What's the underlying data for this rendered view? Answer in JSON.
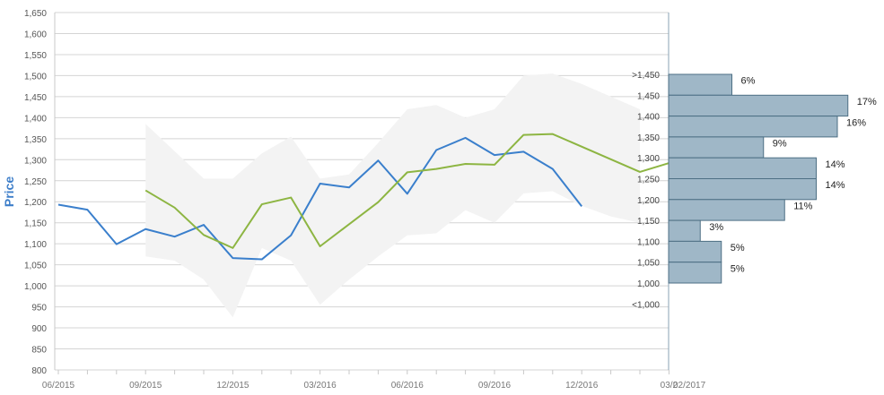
{
  "chart_data": {
    "type": "line",
    "ylabel": "Price",
    "ylim": [
      800,
      1650
    ],
    "y_ticks": [
      "800",
      "850",
      "900",
      "950",
      "1,000",
      "1,050",
      "1,100",
      "1,150",
      "1,200",
      "1,250",
      "1,300",
      "1,350",
      "1,400",
      "1,450",
      "1,500",
      "1,550",
      "1,600",
      "1,650"
    ],
    "x_tick_labels": [
      {
        "label": "06/2015",
        "month_index": 0
      },
      {
        "label": "09/2015",
        "month_index": 3
      },
      {
        "label": "12/2015",
        "month_index": 6
      },
      {
        "label": "03/2016",
        "month_index": 9
      },
      {
        "label": "06/2016",
        "month_index": 12
      },
      {
        "label": "09/2016",
        "month_index": 15
      },
      {
        "label": "12/2016",
        "month_index": 18
      },
      {
        "label": "03/2",
        "month_index": 21
      },
      {
        "label": "02/2017",
        "month_index": 21.7
      }
    ],
    "series": [
      {
        "color": "#3a7fcc",
        "x": [
          0,
          1,
          2,
          3,
          4,
          5,
          6,
          7,
          8,
          9,
          10,
          11,
          12,
          13,
          14,
          15,
          16,
          17,
          18
        ],
        "values": [
          1193,
          1181,
          1099,
          1135,
          1117,
          1145,
          1066,
          1063,
          1120,
          1243,
          1234,
          1298,
          1219,
          1323,
          1352,
          1311,
          1319,
          1278,
          1189
        ]
      },
      {
        "color": "#8db542",
        "x": [
          3,
          4,
          5,
          6,
          7,
          8,
          9,
          11,
          12,
          13,
          14,
          15,
          16,
          17,
          20,
          21
        ],
        "values": [
          1227,
          1186,
          1121,
          1090,
          1194,
          1210,
          1094,
          1199,
          1270,
          1278,
          1290,
          1288,
          1359,
          1361,
          1271,
          1292
        ]
      }
    ],
    "range_band": {
      "color": "#f3f3f3",
      "x": [
        3,
        4,
        5,
        6,
        7,
        8,
        9,
        10,
        11,
        12,
        13,
        14,
        15,
        16,
        17,
        18,
        19,
        20
      ],
      "upper": [
        1385,
        1320,
        1255,
        1255,
        1315,
        1355,
        1255,
        1265,
        1340,
        1420,
        1430,
        1400,
        1420,
        1500,
        1505,
        1480,
        1450,
        1420
      ],
      "lower": [
        1070,
        1060,
        1015,
        925,
        1090,
        1060,
        955,
        1015,
        1070,
        1120,
        1125,
        1180,
        1150,
        1220,
        1225,
        1190,
        1165,
        1150
      ]
    },
    "distribution": {
      "type": "bar",
      "orientation": "horizontal",
      "bins": [
        {
          "label": ">1,450",
          "pct": 6,
          "pct_label": "6%"
        },
        {
          "label": "1,450",
          "pct": 17,
          "pct_label": "17%"
        },
        {
          "label": "1,400",
          "pct": 16,
          "pct_label": "16%"
        },
        {
          "label": "1,350",
          "pct": 9,
          "pct_label": "9%"
        },
        {
          "label": "1,300",
          "pct": 14,
          "pct_label": "14%"
        },
        {
          "label": "1,250",
          "pct": 14,
          "pct_label": "14%"
        },
        {
          "label": "1,200",
          "pct": 11,
          "pct_label": "11%"
        },
        {
          "label": "1,150",
          "pct": 3,
          "pct_label": "3%"
        },
        {
          "label": "1,100",
          "pct": 5,
          "pct_label": "5%"
        },
        {
          "label": "1,050",
          "pct": 5,
          "pct_label": "5%"
        },
        {
          "label": "1,000",
          "pct": null,
          "pct_label": ""
        },
        {
          "label": "<1,000",
          "pct": null,
          "pct_label": ""
        }
      ],
      "bar_color": "#9fb7c7",
      "bar_border": "#4d6f84"
    },
    "grid": true
  }
}
